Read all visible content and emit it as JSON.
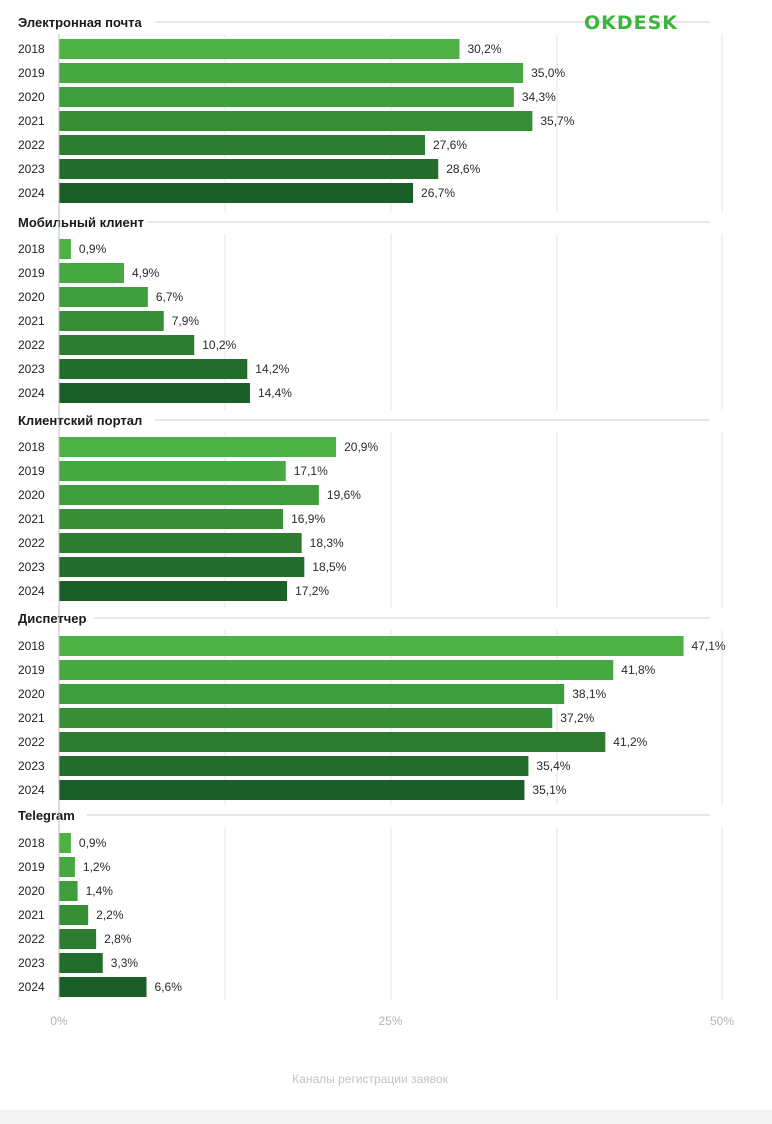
{
  "logo": "OKDESK",
  "footer": "Каналы регистрации заявок",
  "chart_data": {
    "type": "bar",
    "orientation": "horizontal",
    "categories": [
      "2018",
      "2019",
      "2020",
      "2021",
      "2022",
      "2023",
      "2024"
    ],
    "series": [
      {
        "name": "Электронная почта",
        "values": [
          30.2,
          35.0,
          34.3,
          35.7,
          27.6,
          28.6,
          26.7
        ]
      },
      {
        "name": "Мобильный клиент",
        "values": [
          0.9,
          4.9,
          6.7,
          7.9,
          10.2,
          14.2,
          14.4
        ]
      },
      {
        "name": "Клиентский портал",
        "values": [
          20.9,
          17.1,
          19.6,
          16.9,
          18.3,
          18.5,
          17.2
        ]
      },
      {
        "name": "Диспетчер",
        "values": [
          47.1,
          41.8,
          38.1,
          37.2,
          41.2,
          35.4,
          35.1
        ]
      },
      {
        "name": "Telegram",
        "values": [
          0.9,
          1.2,
          1.4,
          2.2,
          2.8,
          3.3,
          6.6
        ]
      }
    ],
    "value_labels": [
      [
        "30,2%",
        "35,0%",
        "34,3%",
        "35,7%",
        "27,6%",
        "28,6%",
        "26,7%"
      ],
      [
        "0,9%",
        "4,9%",
        "6,7%",
        "7,9%",
        "10,2%",
        "14,2%",
        "14,4%"
      ],
      [
        "20,9%",
        "17,1%",
        "19,6%",
        "16,9%",
        "18,3%",
        "18,5%",
        "17,2%"
      ],
      [
        "47,1%",
        "41,8%",
        "38,1%",
        "37,2%",
        "41,2%",
        "35,4%",
        "35,1%"
      ],
      [
        "0,9%",
        "1,2%",
        "1,4%",
        "2,2%",
        "2,8%",
        "3,3%",
        "6,6%"
      ]
    ],
    "xlim": [
      0,
      50
    ],
    "x_ticks": [
      0,
      25,
      50
    ],
    "x_tick_labels": [
      "0%",
      "25%",
      "50%"
    ],
    "grid": true,
    "colors": [
      "#4db146",
      "#46a841",
      "#3f9d3d",
      "#378e37",
      "#2d7c32",
      "#236c2c",
      "#1b5e27"
    ]
  }
}
